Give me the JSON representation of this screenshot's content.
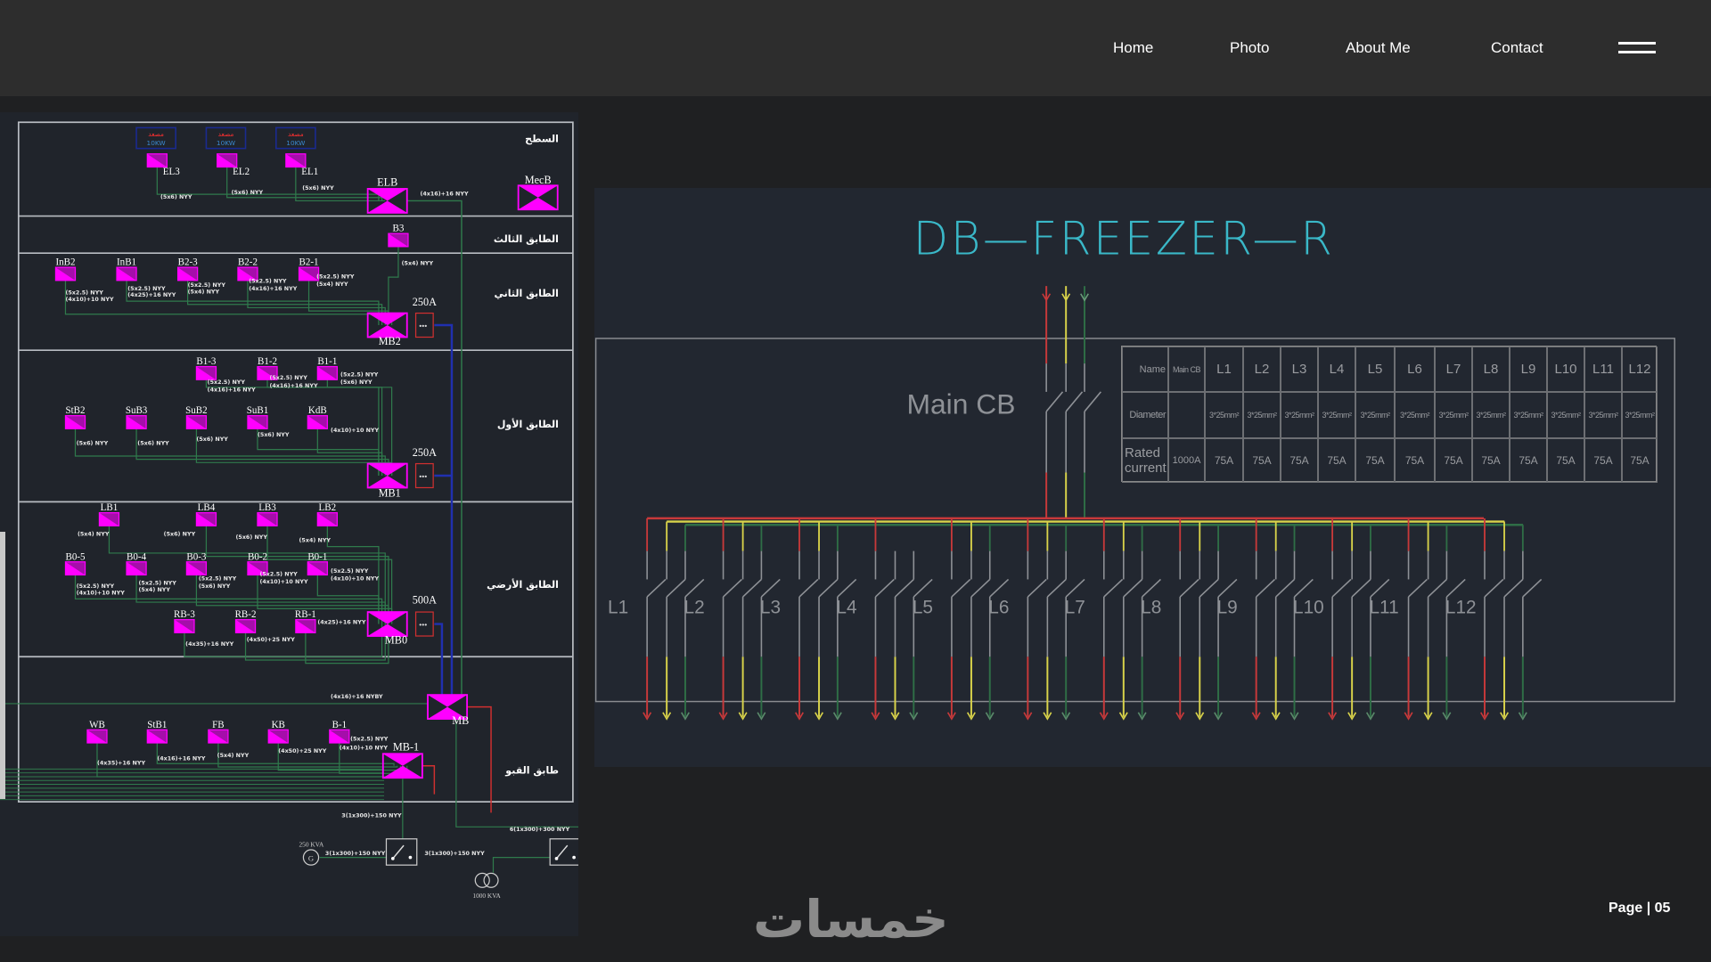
{
  "nav": {
    "items": [
      "Home",
      "Photo",
      "About Me",
      "Contact"
    ],
    "menu_icon": "hamburger-icon"
  },
  "colors": {
    "header": "#2d2d2d",
    "title": "#3ab8c8",
    "magenta": "#ff00ff",
    "phase_red": "#c8393a",
    "phase_yellow": "#d9d34a",
    "phase_green": "#2f6e46"
  },
  "riser": {
    "floors": [
      "السطح",
      "الطابق الثالث",
      "الطابق الثاني",
      "الطابق الأول",
      "الطابق الأرضي",
      "طابق القبو"
    ],
    "elevators": [
      {
        "name": "مصعد",
        "power": "10KW"
      },
      {
        "name": "مصعد",
        "power": "10KW"
      },
      {
        "name": "مصعد",
        "power": "10KW"
      }
    ],
    "subboards": [
      "EL3",
      "EL2",
      "EL1",
      "B3",
      "InB2",
      "InB1",
      "B2-3",
      "B2-2",
      "B2-1",
      "B1-3",
      "B1-2",
      "B1-1",
      "StB2",
      "SuB3",
      "SuB2",
      "SuB1",
      "KdB",
      "LB1",
      "LB4",
      "LB3",
      "LB2",
      "B0-5",
      "B0-4",
      "B0-3",
      "B0-2",
      "B0-1",
      "RB-3",
      "RB-2",
      "RB-1",
      "WB",
      "StB1",
      "FB",
      "KB",
      "B-1"
    ],
    "mainboards": [
      "ELB",
      "MecB",
      "MB2",
      "MB1",
      "MB0",
      "MB",
      "MB-1"
    ],
    "breakers": [
      "250A",
      "250A",
      "500A"
    ],
    "cables": [
      "(5x6) NYY",
      "(5x6) NYY",
      "(5x6) NYY",
      "(4x16)+16 NYY",
      "(5x4) NYY",
      "(5x2.5) NYY",
      "(4x10)+10 NYY",
      "(5x2.5) NYY",
      "(4x25)+16 NYY",
      "(5x2.5) NYY",
      "(5x4) NYY",
      "(5x2.5) NYY",
      "(4x16)+16 NYY",
      "(5x2.5) NYY",
      "(5x4) NYY",
      "(5x2.5) NYY",
      "(4x16)+16 NYY",
      "(5x2.5) NYY",
      "(4x16)+16 NYY",
      "(5x2.5) NYY",
      "(5x6) NYY",
      "(5x6) NYY",
      "(5x6) NYY",
      "(5x6) NYY",
      "(5x6) NYY",
      "(4x10)+10 NYY",
      "(5x4) NYY",
      "(5x6) NYY",
      "(5x6) NYY",
      "(5x4) NYY",
      "(5x2.5) NYY",
      "(4x10)+10 NYY",
      "(5x2.5) NYY",
      "(5x4) NYY",
      "(5x2.5) NYY",
      "(5x6) NYY",
      "(5x2.5) NYY",
      "(4x10)+10 NYY",
      "(5x2.5) NYY",
      "(4x10)+10 NYY",
      "(4x35)+16 NYY",
      "(4x50)+25 NYY",
      "(4x25)+16 NYY",
      "(4x16)+16 NYBY",
      "(4x35)+16 NYY",
      "(4x16)+16 NYY",
      "(5x4) NYY",
      "(4x50)+25 NYY",
      "(5x2.5) NYY",
      "(4x10)+10 NYY",
      "3(1x300)+150 NYY",
      "3(1x300)+150 NYY",
      "3(1x300)+150 NYY",
      "6(1x300)+300 NYY"
    ],
    "generator": {
      "symbol": "G",
      "rating": "250 KVA"
    },
    "transformer": {
      "rating": "1000 KVA"
    }
  },
  "db": {
    "title": "DB—FREEZER—R",
    "main_cb_label": "Main CB",
    "circuits": [
      "L1",
      "L2",
      "L3",
      "L4",
      "L5",
      "L6",
      "L7",
      "L8",
      "L9",
      "L10",
      "L11",
      "L12"
    ],
    "table": {
      "row_headers": [
        "Name",
        "Diameter",
        "Rated current"
      ],
      "columns": [
        "Main CB",
        "L1",
        "L2",
        "L3",
        "L4",
        "L5",
        "L6",
        "L7",
        "L8",
        "L9",
        "L10",
        "L11",
        "L12"
      ],
      "diameter": [
        "",
        "3*25mm²",
        "3*25mm²",
        "3*25mm²",
        "3*25mm²",
        "3*25mm²",
        "3*25mm²",
        "3*25mm²",
        "3*25mm²",
        "3*25mm²",
        "3*25mm²",
        "3*25mm²",
        "3*25mm²"
      ],
      "rated_current": [
        "1000A",
        "75A",
        "75A",
        "75A",
        "75A",
        "75A",
        "75A",
        "75A",
        "75A",
        "75A",
        "75A",
        "75A",
        "75A"
      ]
    }
  },
  "footer": {
    "logo_text": "خمسات",
    "page_label": "Page | 05"
  }
}
